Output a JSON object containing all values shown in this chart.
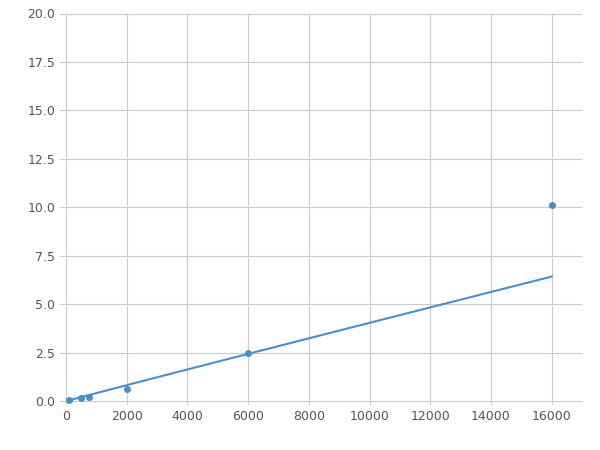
{
  "x": [
    100,
    500,
    750,
    2000,
    6000,
    16000
  ],
  "y": [
    0.08,
    0.15,
    0.2,
    0.6,
    2.5,
    10.1
  ],
  "line_color": "#4a90c4",
  "marker_color": "#4a90c4",
  "marker_size": 4,
  "xlim": [
    -200,
    17000
  ],
  "ylim": [
    -0.2,
    20.0
  ],
  "xticks": [
    0,
    2000,
    4000,
    6000,
    8000,
    10000,
    12000,
    14000,
    16000
  ],
  "yticks": [
    0.0,
    2.5,
    5.0,
    7.5,
    10.0,
    12.5,
    15.0,
    17.5,
    20.0
  ],
  "grid": true,
  "background_color": "#ffffff",
  "figsize": [
    6.0,
    4.5
  ],
  "dpi": 100
}
